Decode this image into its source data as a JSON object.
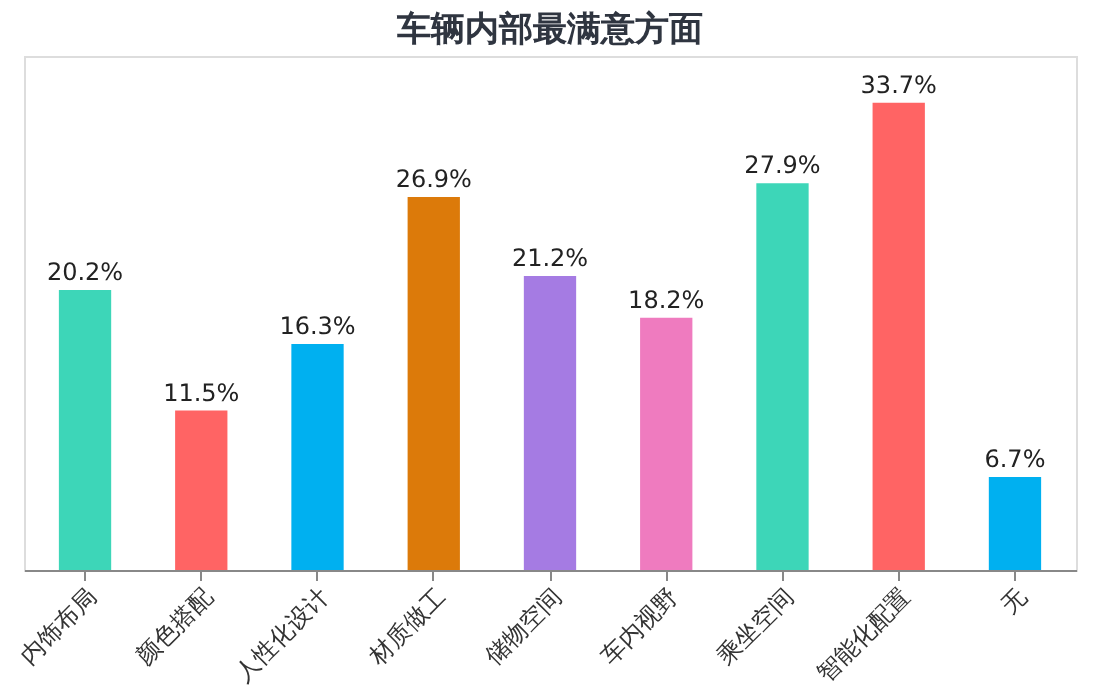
{
  "chart_data": {
    "type": "bar",
    "title": "车辆内部最满意方面",
    "categories": [
      "内饰布局",
      "颜色搭配",
      "人性化设计",
      "材质做工",
      "储物空间",
      "车内视野",
      "乘坐空间",
      "智能化配置",
      "无"
    ],
    "values": [
      20.2,
      11.5,
      16.3,
      26.9,
      21.2,
      18.2,
      27.9,
      33.7,
      6.7
    ],
    "colors": [
      "#3dd6b8",
      "#ff6464",
      "#00b0f0",
      "#dc7a0a",
      "#a57be3",
      "#ef7bbf",
      "#3dd6b8",
      "#ff6464",
      "#00b0f0"
    ],
    "value_labels": [
      "20.2%",
      "11.5%",
      "16.3%",
      "26.9%",
      "21.2%",
      "18.2%",
      "27.9%",
      "33.7%",
      "6.7%"
    ],
    "data_labels": false
  }
}
